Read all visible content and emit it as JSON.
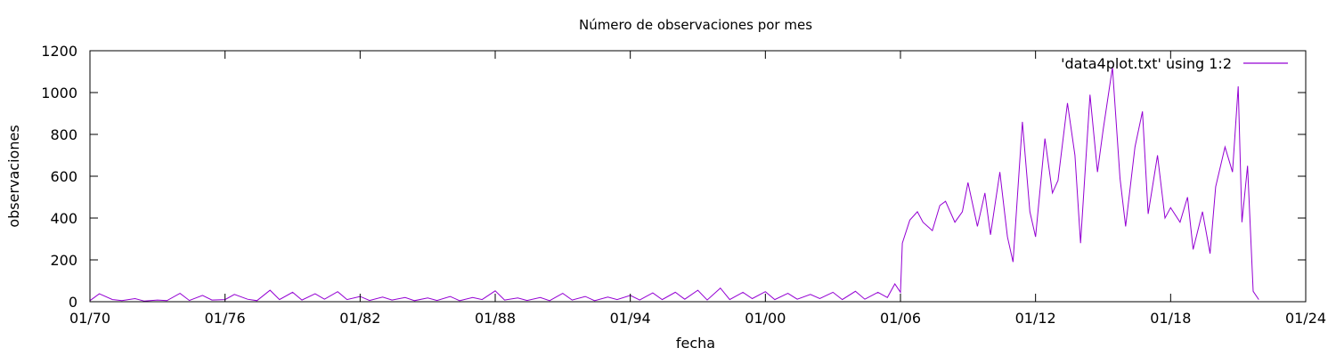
{
  "chart_data": {
    "type": "line",
    "title": "Número de observaciones por mes",
    "xlabel": "fecha",
    "ylabel": "observaciones",
    "ylim": [
      0,
      1200
    ],
    "xlim": [
      "1970-01",
      "2024-01"
    ],
    "grid": false,
    "legend_position": "top-right",
    "series_color": "#9400d3",
    "x_ticks": [
      {
        "label": "01/70",
        "date": "1970-01"
      },
      {
        "label": "01/76",
        "date": "1976-01"
      },
      {
        "label": "01/82",
        "date": "1982-01"
      },
      {
        "label": "01/88",
        "date": "1988-01"
      },
      {
        "label": "01/94",
        "date": "1994-01"
      },
      {
        "label": "01/00",
        "date": "2000-01"
      },
      {
        "label": "01/06",
        "date": "2006-01"
      },
      {
        "label": "01/12",
        "date": "2012-01"
      },
      {
        "label": "01/18",
        "date": "2018-01"
      },
      {
        "label": "01/24",
        "date": "2024-01"
      }
    ],
    "y_ticks": [
      0,
      200,
      400,
      600,
      800,
      1000,
      1200
    ],
    "series": [
      {
        "name": "'data4plot.txt' using 1:2",
        "points": [
          [
            "1970-01",
            5
          ],
          [
            "1970-06",
            38
          ],
          [
            "1971-01",
            10
          ],
          [
            "1971-06",
            5
          ],
          [
            "1972-01",
            15
          ],
          [
            "1972-06",
            3
          ],
          [
            "1973-01",
            8
          ],
          [
            "1973-06",
            5
          ],
          [
            "1974-01",
            40
          ],
          [
            "1974-06",
            6
          ],
          [
            "1975-01",
            30
          ],
          [
            "1975-06",
            8
          ],
          [
            "1976-01",
            10
          ],
          [
            "1976-06",
            35
          ],
          [
            "1977-01",
            12
          ],
          [
            "1977-06",
            5
          ],
          [
            "1978-01",
            55
          ],
          [
            "1978-06",
            10
          ],
          [
            "1979-01",
            45
          ],
          [
            "1979-06",
            8
          ],
          [
            "1980-01",
            38
          ],
          [
            "1980-06",
            12
          ],
          [
            "1981-01",
            48
          ],
          [
            "1981-06",
            10
          ],
          [
            "1982-01",
            25
          ],
          [
            "1982-06",
            6
          ],
          [
            "1983-01",
            22
          ],
          [
            "1983-06",
            8
          ],
          [
            "1984-01",
            20
          ],
          [
            "1984-06",
            5
          ],
          [
            "1985-01",
            18
          ],
          [
            "1985-06",
            6
          ],
          [
            "1986-01",
            25
          ],
          [
            "1986-06",
            5
          ],
          [
            "1987-01",
            20
          ],
          [
            "1987-06",
            10
          ],
          [
            "1988-01",
            52
          ],
          [
            "1988-06",
            8
          ],
          [
            "1989-01",
            18
          ],
          [
            "1989-06",
            6
          ],
          [
            "1990-01",
            20
          ],
          [
            "1990-06",
            5
          ],
          [
            "1991-01",
            40
          ],
          [
            "1991-06",
            8
          ],
          [
            "1992-01",
            25
          ],
          [
            "1992-06",
            5
          ],
          [
            "1993-01",
            22
          ],
          [
            "1993-06",
            10
          ],
          [
            "1994-01",
            30
          ],
          [
            "1994-06",
            8
          ],
          [
            "1995-01",
            42
          ],
          [
            "1995-06",
            10
          ],
          [
            "1996-01",
            45
          ],
          [
            "1996-06",
            12
          ],
          [
            "1997-01",
            55
          ],
          [
            "1997-06",
            8
          ],
          [
            "1998-01",
            65
          ],
          [
            "1998-06",
            10
          ],
          [
            "1999-01",
            45
          ],
          [
            "1999-06",
            15
          ],
          [
            "2000-01",
            48
          ],
          [
            "2000-06",
            10
          ],
          [
            "2001-01",
            40
          ],
          [
            "2001-06",
            12
          ],
          [
            "2002-01",
            35
          ],
          [
            "2002-06",
            15
          ],
          [
            "2003-01",
            45
          ],
          [
            "2003-06",
            10
          ],
          [
            "2004-01",
            50
          ],
          [
            "2004-06",
            12
          ],
          [
            "2005-01",
            45
          ],
          [
            "2005-06",
            20
          ],
          [
            "2005-10",
            85
          ],
          [
            "2006-01",
            45
          ],
          [
            "2006-02",
            280
          ],
          [
            "2006-06",
            390
          ],
          [
            "2006-10",
            430
          ],
          [
            "2007-01",
            380
          ],
          [
            "2007-06",
            340
          ],
          [
            "2007-10",
            460
          ],
          [
            "2008-01",
            480
          ],
          [
            "2008-06",
            380
          ],
          [
            "2008-10",
            430
          ],
          [
            "2009-01",
            570
          ],
          [
            "2009-06",
            360
          ],
          [
            "2009-10",
            520
          ],
          [
            "2010-01",
            320
          ],
          [
            "2010-06",
            620
          ],
          [
            "2010-10",
            310
          ],
          [
            "2011-01",
            190
          ],
          [
            "2011-06",
            860
          ],
          [
            "2011-10",
            430
          ],
          [
            "2012-01",
            310
          ],
          [
            "2012-06",
            780
          ],
          [
            "2012-10",
            520
          ],
          [
            "2013-01",
            580
          ],
          [
            "2013-06",
            950
          ],
          [
            "2013-10",
            700
          ],
          [
            "2014-01",
            280
          ],
          [
            "2014-06",
            990
          ],
          [
            "2014-10",
            620
          ],
          [
            "2015-01",
            820
          ],
          [
            "2015-06",
            1120
          ],
          [
            "2015-10",
            590
          ],
          [
            "2016-01",
            360
          ],
          [
            "2016-06",
            740
          ],
          [
            "2016-10",
            910
          ],
          [
            "2017-01",
            420
          ],
          [
            "2017-06",
            700
          ],
          [
            "2017-10",
            400
          ],
          [
            "2018-01",
            450
          ],
          [
            "2018-06",
            380
          ],
          [
            "2018-10",
            500
          ],
          [
            "2019-01",
            250
          ],
          [
            "2019-06",
            430
          ],
          [
            "2019-10",
            230
          ],
          [
            "2020-01",
            550
          ],
          [
            "2020-06",
            740
          ],
          [
            "2020-10",
            620
          ],
          [
            "2021-01",
            1030
          ],
          [
            "2021-03",
            380
          ],
          [
            "2021-06",
            650
          ],
          [
            "2021-09",
            50
          ],
          [
            "2021-12",
            10
          ]
        ]
      }
    ]
  }
}
